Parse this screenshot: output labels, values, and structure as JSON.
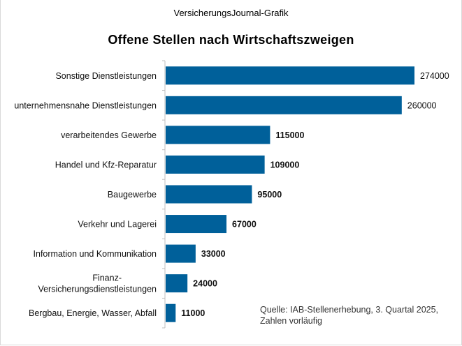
{
  "header": {
    "supertitle": "VersicherungsJournal-Grafik"
  },
  "chart_data": {
    "type": "bar",
    "orientation": "horizontal",
    "title": "Offene Stellen nach Wirtschaftszweigen",
    "categories": [
      "Sonstige Dienstleistungen",
      "unternehmensnahe Dienstleistungen",
      "verarbeitendes Gewerbe",
      "Handel und Kfz-Reparatur",
      "Baugewerbe",
      "Verkehr und Lagerei",
      "Information und Kommunikation",
      "Finanz-, Versicherungsdienstleistungen",
      "Bergbau, Energie, Wasser, Abfall"
    ],
    "category_lines": [
      [
        "Sonstige Dienstleistungen"
      ],
      [
        "unternehmensnahe Dienstleistungen"
      ],
      [
        "verarbeitendes Gewerbe"
      ],
      [
        "Handel und Kfz-Reparatur"
      ],
      [
        "Baugewerbe"
      ],
      [
        "Verkehr und Lagerei"
      ],
      [
        "Information und Kommunikation"
      ],
      [
        "Finanz-",
        "Versicherungsdienstleistungen"
      ],
      [
        "Bergbau, Energie, Wasser, Abfall"
      ]
    ],
    "values": [
      274000,
      260000,
      115000,
      109000,
      95000,
      67000,
      33000,
      24000,
      11000
    ],
    "data_labels": [
      "274000",
      "260000",
      "115000",
      "109000",
      "95000",
      "67000",
      "33000",
      "24000",
      "11000"
    ],
    "bar_color": "#00609a",
    "xlim": [
      0,
      274000
    ],
    "grid": false,
    "legend": "none",
    "annotation": "Quelle: IAB-Stellenerhebung, 3. Quartal 2025, Zahlen vorläufig"
  }
}
